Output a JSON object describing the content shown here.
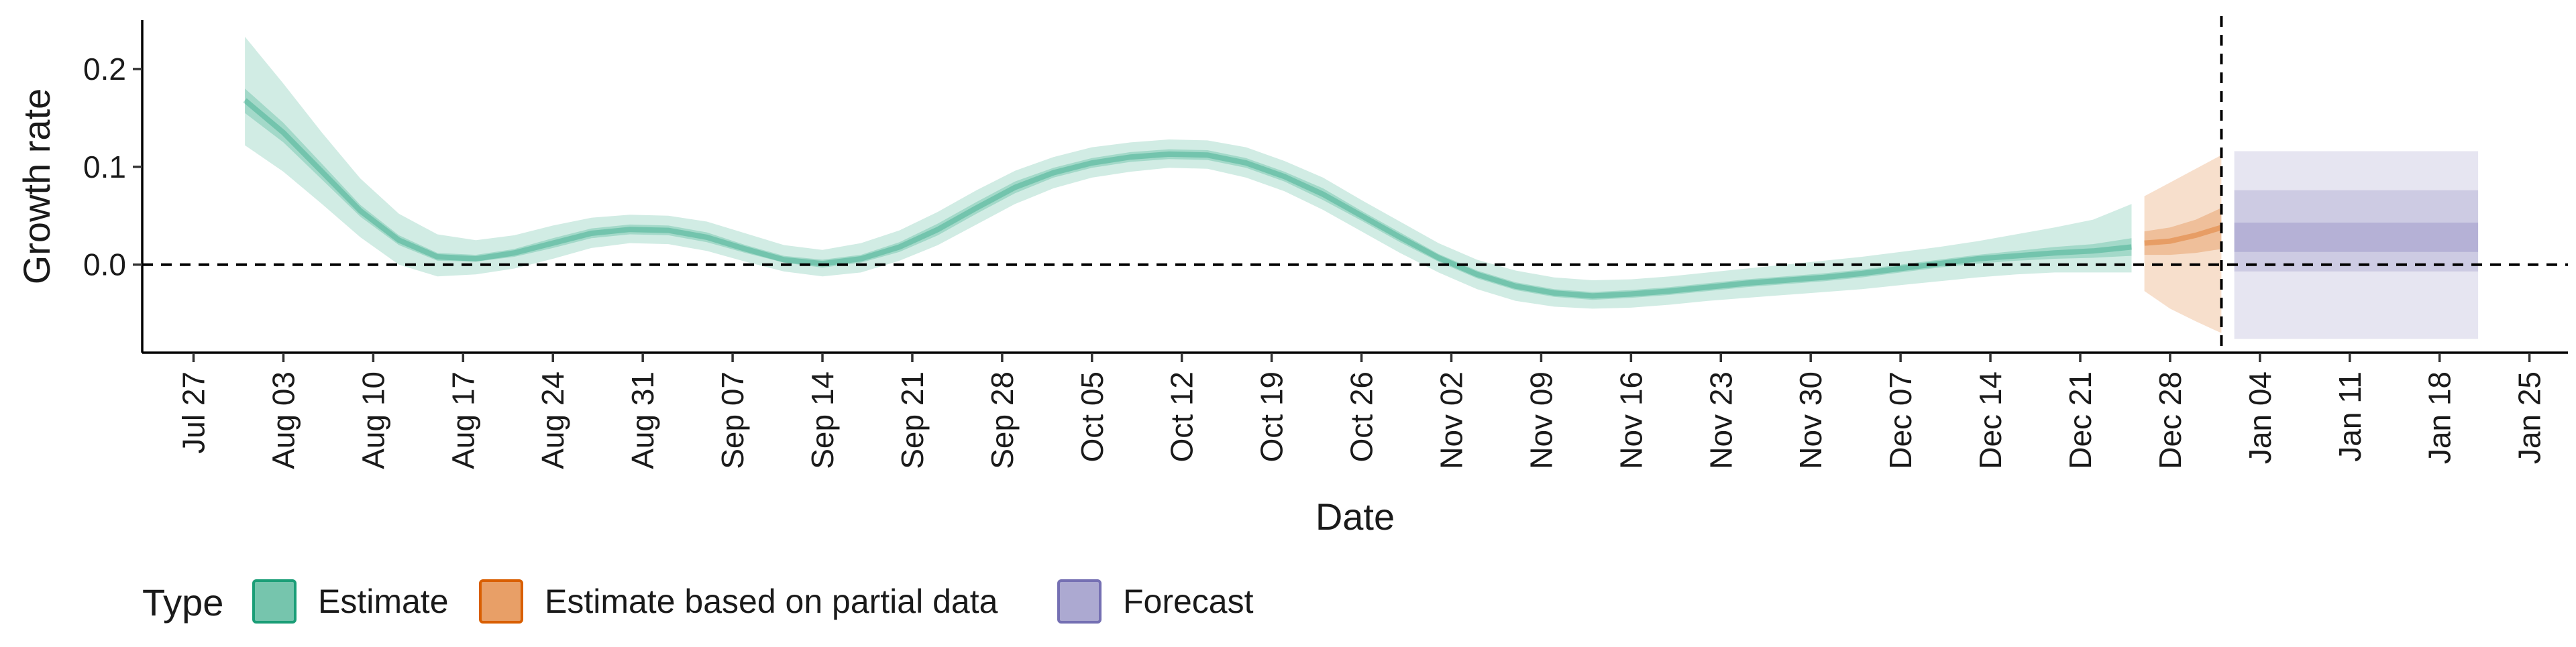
{
  "chart_data": {
    "type": "area",
    "xlabel": "Date",
    "ylabel": "Growth rate",
    "x_range": [
      "2020-07-23",
      "2021-01-28"
    ],
    "ylim": [
      -0.09,
      0.25
    ],
    "y_ticks": [
      0.0,
      0.1,
      0.2
    ],
    "y_tick_labels": [
      "0.0",
      "0.1",
      "0.2"
    ],
    "x_ticks": [
      "2020-07-27",
      "2020-08-03",
      "2020-08-10",
      "2020-08-17",
      "2020-08-24",
      "2020-08-31",
      "2020-09-07",
      "2020-09-14",
      "2020-09-21",
      "2020-09-28",
      "2020-10-05",
      "2020-10-12",
      "2020-10-19",
      "2020-10-26",
      "2020-11-02",
      "2020-11-09",
      "2020-11-16",
      "2020-11-23",
      "2020-11-30",
      "2020-12-07",
      "2020-12-14",
      "2020-12-21",
      "2020-12-28",
      "2021-01-04",
      "2021-01-11",
      "2021-01-18",
      "2021-01-25"
    ],
    "x_tick_labels": [
      "Jul 27",
      "Aug 03",
      "Aug 10",
      "Aug 17",
      "Aug 24",
      "Aug 31",
      "Sep 07",
      "Sep 14",
      "Sep 21",
      "Sep 28",
      "Oct 05",
      "Oct 12",
      "Oct 19",
      "Oct 26",
      "Nov 02",
      "Nov 09",
      "Nov 16",
      "Nov 23",
      "Nov 30",
      "Dec 07",
      "Dec 14",
      "Dec 21",
      "Dec 28",
      "Jan 04",
      "Jan 11",
      "Jan 18",
      "Jan 25"
    ],
    "reference_lines": {
      "horizontal_y": 0.0,
      "vertical_date": "2021-01-01"
    },
    "grid": false,
    "legend": {
      "title": "Type",
      "position": "bottom-left",
      "entries": [
        {
          "label": "Estimate",
          "color": "#1b9e77"
        },
        {
          "label": "Estimate based on partial data",
          "color": "#d95f02"
        },
        {
          "label": "Forecast",
          "color": "#7570b3"
        }
      ]
    },
    "series": [
      {
        "name": "Estimate",
        "color": "#1b9e77",
        "x": [
          "2020-07-31",
          "2020-08-03",
          "2020-08-06",
          "2020-08-09",
          "2020-08-12",
          "2020-08-15",
          "2020-08-18",
          "2020-08-21",
          "2020-08-24",
          "2020-08-27",
          "2020-08-30",
          "2020-09-02",
          "2020-09-05",
          "2020-09-08",
          "2020-09-11",
          "2020-09-14",
          "2020-09-17",
          "2020-09-20",
          "2020-09-23",
          "2020-09-26",
          "2020-09-29",
          "2020-10-02",
          "2020-10-05",
          "2020-10-08",
          "2020-10-11",
          "2020-10-14",
          "2020-10-17",
          "2020-10-20",
          "2020-10-23",
          "2020-10-26",
          "2020-10-29",
          "2020-11-01",
          "2020-11-04",
          "2020-11-07",
          "2020-11-10",
          "2020-11-13",
          "2020-11-16",
          "2020-11-19",
          "2020-11-22",
          "2020-11-25",
          "2020-11-28",
          "2020-12-01",
          "2020-12-04",
          "2020-12-07",
          "2020-12-10",
          "2020-12-13",
          "2020-12-16",
          "2020-12-19",
          "2020-12-22",
          "2020-12-25"
        ],
        "median": [
          0.168,
          0.135,
          0.095,
          0.055,
          0.025,
          0.008,
          0.006,
          0.012,
          0.022,
          0.032,
          0.036,
          0.035,
          0.028,
          0.016,
          0.005,
          0.001,
          0.006,
          0.018,
          0.036,
          0.058,
          0.079,
          0.094,
          0.104,
          0.11,
          0.113,
          0.112,
          0.104,
          0.09,
          0.072,
          0.05,
          0.028,
          0.007,
          -0.01,
          -0.022,
          -0.029,
          -0.032,
          -0.03,
          -0.027,
          -0.023,
          -0.019,
          -0.016,
          -0.013,
          -0.009,
          -0.004,
          0.001,
          0.006,
          0.009,
          0.012,
          0.014,
          0.018
        ],
        "lower50": [
          0.155,
          0.125,
          0.087,
          0.049,
          0.02,
          0.004,
          0.003,
          0.008,
          0.017,
          0.027,
          0.031,
          0.03,
          0.023,
          0.012,
          0.002,
          -0.003,
          0.002,
          0.013,
          0.03,
          0.052,
          0.073,
          0.089,
          0.099,
          0.105,
          0.108,
          0.107,
          0.099,
          0.085,
          0.066,
          0.045,
          0.023,
          0.003,
          -0.014,
          -0.026,
          -0.033,
          -0.036,
          -0.034,
          -0.031,
          -0.027,
          -0.023,
          -0.02,
          -0.017,
          -0.013,
          -0.008,
          -0.003,
          0.001,
          0.004,
          0.006,
          0.007,
          0.009
        ],
        "upper50": [
          0.18,
          0.145,
          0.103,
          0.061,
          0.03,
          0.012,
          0.01,
          0.016,
          0.027,
          0.037,
          0.041,
          0.04,
          0.033,
          0.02,
          0.009,
          0.005,
          0.01,
          0.023,
          0.042,
          0.064,
          0.085,
          0.099,
          0.109,
          0.115,
          0.118,
          0.117,
          0.109,
          0.095,
          0.078,
          0.055,
          0.033,
          0.011,
          -0.006,
          -0.018,
          -0.025,
          -0.028,
          -0.026,
          -0.023,
          -0.019,
          -0.015,
          -0.012,
          -0.009,
          -0.005,
          0.0,
          0.005,
          0.01,
          0.014,
          0.018,
          0.021,
          0.027
        ],
        "lower90": [
          0.122,
          0.095,
          0.062,
          0.028,
          0.0,
          -0.012,
          -0.01,
          -0.004,
          0.006,
          0.017,
          0.022,
          0.021,
          0.014,
          0.003,
          -0.007,
          -0.012,
          -0.008,
          0.004,
          0.02,
          0.041,
          0.062,
          0.078,
          0.089,
          0.095,
          0.099,
          0.098,
          0.089,
          0.075,
          0.056,
          0.034,
          0.012,
          -0.008,
          -0.025,
          -0.037,
          -0.043,
          -0.045,
          -0.044,
          -0.041,
          -0.037,
          -0.034,
          -0.031,
          -0.028,
          -0.025,
          -0.021,
          -0.017,
          -0.013,
          -0.01,
          -0.008,
          -0.008,
          -0.008
        ],
        "upper90": [
          0.233,
          0.185,
          0.135,
          0.088,
          0.052,
          0.031,
          0.025,
          0.03,
          0.04,
          0.048,
          0.051,
          0.05,
          0.044,
          0.032,
          0.02,
          0.015,
          0.022,
          0.035,
          0.054,
          0.076,
          0.096,
          0.11,
          0.12,
          0.125,
          0.128,
          0.127,
          0.12,
          0.106,
          0.089,
          0.066,
          0.044,
          0.022,
          0.005,
          -0.006,
          -0.013,
          -0.016,
          -0.015,
          -0.012,
          -0.008,
          -0.004,
          0.0,
          0.004,
          0.008,
          0.013,
          0.018,
          0.024,
          0.031,
          0.038,
          0.046,
          0.062
        ]
      },
      {
        "name": "Estimate based on partial data",
        "color": "#d95f02",
        "x": [
          "2020-12-26",
          "2020-12-28",
          "2020-12-30",
          "2021-01-01"
        ],
        "median": [
          0.022,
          0.024,
          0.03,
          0.038
        ],
        "lower50": [
          0.01,
          0.01,
          0.012,
          0.016
        ],
        "upper50": [
          0.034,
          0.038,
          0.046,
          0.058
        ],
        "lower90": [
          -0.027,
          -0.045,
          -0.058,
          -0.07
        ],
        "upper90": [
          0.07,
          0.084,
          0.098,
          0.112
        ]
      },
      {
        "name": "Forecast",
        "color": "#7570b3",
        "x": [
          "2021-01-02",
          "2021-01-21"
        ],
        "median": [
          0.028,
          0.028
        ],
        "lower25": [
          0.013,
          0.013
        ],
        "upper25": [
          0.043,
          0.043
        ],
        "lower50": [
          -0.007,
          -0.007
        ],
        "upper50": [
          0.076,
          0.076
        ],
        "lower90": [
          -0.076,
          -0.076
        ],
        "upper90": [
          0.116,
          0.116
        ]
      }
    ]
  }
}
